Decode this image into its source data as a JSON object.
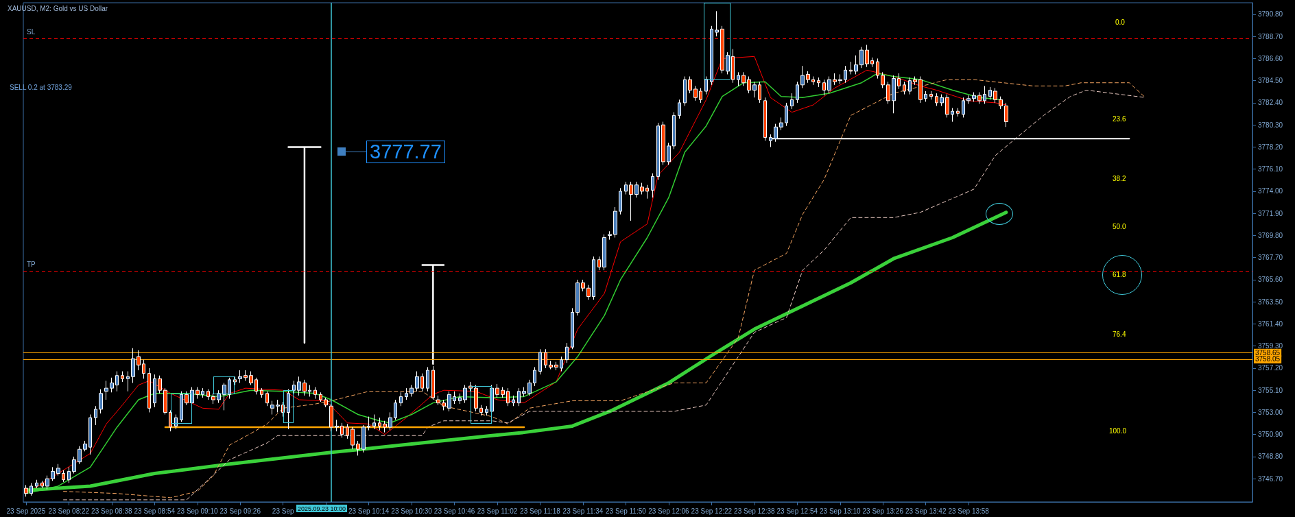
{
  "chart_data": {
    "type": "candlestick",
    "title": "XAUUSD, M2: Gold vs US Dollar",
    "x": [
      "2025-09-23T08:06",
      "2025-09-23T08:08",
      "2025-09-23T08:10",
      "2025-09-23T08:12",
      "2025-09-23T08:14",
      "2025-09-23T08:16",
      "2025-09-23T08:18",
      "2025-09-23T08:20",
      "2025-09-23T08:22",
      "2025-09-23T08:24",
      "2025-09-23T08:26",
      "2025-09-23T08:28",
      "2025-09-23T08:30",
      "2025-09-23T08:32",
      "2025-09-23T08:34",
      "2025-09-23T08:36",
      "2025-09-23T08:38",
      "2025-09-23T08:40",
      "2025-09-23T08:42",
      "2025-09-23T08:44",
      "2025-09-23T08:46",
      "2025-09-23T08:48",
      "2025-09-23T08:50",
      "2025-09-23T08:52",
      "2025-09-23T08:54",
      "2025-09-23T08:56",
      "2025-09-23T08:58",
      "2025-09-23T09:00",
      "2025-09-23T09:02",
      "2025-09-23T09:04",
      "2025-09-23T09:06",
      "2025-09-23T09:08",
      "2025-09-23T09:10",
      "2025-09-23T09:12",
      "2025-09-23T09:14",
      "2025-09-23T09:16",
      "2025-09-23T09:18",
      "2025-09-23T09:20",
      "2025-09-23T09:22",
      "2025-09-23T09:24",
      "2025-09-23T09:26",
      "2025-09-23T09:28",
      "2025-09-23T09:30",
      "2025-09-23T09:32",
      "2025-09-23T09:34",
      "2025-09-23T09:36",
      "2025-09-23T09:38",
      "2025-09-23T09:40",
      "2025-09-23T09:42",
      "2025-09-23T09:44",
      "2025-09-23T09:46",
      "2025-09-23T09:48",
      "2025-09-23T09:50",
      "2025-09-23T09:52",
      "2025-09-23T09:54",
      "2025-09-23T09:56",
      "2025-09-23T09:58",
      "2025-09-23T10:00",
      "2025-09-23T10:02",
      "2025-09-23T10:04",
      "2025-09-23T10:06",
      "2025-09-23T10:08",
      "2025-09-23T10:10",
      "2025-09-23T10:12",
      "2025-09-23T10:14",
      "2025-09-23T10:16",
      "2025-09-23T10:18",
      "2025-09-23T10:20",
      "2025-09-23T10:22",
      "2025-09-23T10:24",
      "2025-09-23T10:26",
      "2025-09-23T10:28",
      "2025-09-23T10:30",
      "2025-09-23T10:32",
      "2025-09-23T10:34",
      "2025-09-23T10:36",
      "2025-09-23T10:38",
      "2025-09-23T10:40",
      "2025-09-23T10:42",
      "2025-09-23T10:44",
      "2025-09-23T10:46",
      "2025-09-23T10:48",
      "2025-09-23T10:50",
      "2025-09-23T10:52",
      "2025-09-23T10:54",
      "2025-09-23T10:56",
      "2025-09-23T10:58",
      "2025-09-23T11:00",
      "2025-09-23T11:02",
      "2025-09-23T11:04",
      "2025-09-23T11:06",
      "2025-09-23T11:08",
      "2025-09-23T11:10",
      "2025-09-23T11:12",
      "2025-09-23T11:14",
      "2025-09-23T11:16",
      "2025-09-23T11:18",
      "2025-09-23T11:20",
      "2025-09-23T11:22",
      "2025-09-23T11:24",
      "2025-09-23T11:26",
      "2025-09-23T11:28",
      "2025-09-23T11:30",
      "2025-09-23T11:32",
      "2025-09-23T11:34",
      "2025-09-23T11:36",
      "2025-09-23T11:38",
      "2025-09-23T11:40",
      "2025-09-23T11:42",
      "2025-09-23T11:44",
      "2025-09-23T11:46",
      "2025-09-23T11:48",
      "2025-09-23T11:50",
      "2025-09-23T11:52",
      "2025-09-23T11:54",
      "2025-09-23T11:56",
      "2025-09-23T11:58",
      "2025-09-23T12:00",
      "2025-09-23T12:02",
      "2025-09-23T12:04",
      "2025-09-23T12:06",
      "2025-09-23T12:08",
      "2025-09-23T12:10",
      "2025-09-23T12:12",
      "2025-09-23T12:14",
      "2025-09-23T12:16",
      "2025-09-23T12:18",
      "2025-09-23T12:20",
      "2025-09-23T12:22",
      "2025-09-23T12:24",
      "2025-09-23T12:26",
      "2025-09-23T12:28",
      "2025-09-23T12:30",
      "2025-09-23T12:32",
      "2025-09-23T12:34",
      "2025-09-23T12:36",
      "2025-09-23T12:38",
      "2025-09-23T12:40",
      "2025-09-23T12:42",
      "2025-09-23T12:44",
      "2025-09-23T12:46",
      "2025-09-23T12:48",
      "2025-09-23T12:50",
      "2025-09-23T12:52",
      "2025-09-23T12:54",
      "2025-09-23T12:56",
      "2025-09-23T12:58",
      "2025-09-23T13:00",
      "2025-09-23T13:02",
      "2025-09-23T13:04",
      "2025-09-23T13:06",
      "2025-09-23T13:08",
      "2025-09-23T13:10",
      "2025-09-23T13:12",
      "2025-09-23T13:14",
      "2025-09-23T13:16",
      "2025-09-23T13:18",
      "2025-09-23T13:20",
      "2025-09-23T13:22",
      "2025-09-23T13:24",
      "2025-09-23T13:26",
      "2025-09-23T13:28",
      "2025-09-23T13:30",
      "2025-09-23T13:32",
      "2025-09-23T13:34",
      "2025-09-23T13:36",
      "2025-09-23T13:38",
      "2025-09-23T13:40",
      "2025-09-23T13:42",
      "2025-09-23T13:44",
      "2025-09-23T13:46",
      "2025-09-23T13:48",
      "2025-09-23T13:50",
      "2025-09-23T13:52",
      "2025-09-23T13:54",
      "2025-09-23T13:56",
      "2025-09-23T13:58",
      "2025-09-23T14:00",
      "2025-09-23T14:02",
      "2025-09-23T14:04",
      "2025-09-23T14:06",
      "2025-09-23T14:08",
      "2025-09-23T14:10",
      "2025-09-23T14:12"
    ],
    "ohlc": [
      [
        3745.8,
        3746.1,
        3745.0,
        3745.3
      ],
      [
        3745.3,
        3746.3,
        3745.1,
        3746.0
      ],
      [
        3746.0,
        3746.6,
        3745.8,
        3746.3
      ],
      [
        3746.3,
        3746.5,
        3745.8,
        3746.0
      ],
      [
        3746.0,
        3747.0,
        3745.7,
        3746.7
      ],
      [
        3746.7,
        3747.8,
        3746.5,
        3747.4
      ],
      [
        3747.2,
        3748.1,
        3747.0,
        3747.7
      ],
      [
        3747.2,
        3747.5,
        3746.4,
        3746.6
      ],
      [
        3746.6,
        3747.8,
        3746.3,
        3747.4
      ],
      [
        3747.4,
        3748.8,
        3747.2,
        3748.5
      ],
      [
        3748.3,
        3749.8,
        3748.1,
        3749.5
      ],
      [
        3749.5,
        3750.3,
        3749.3,
        3750.0
      ],
      [
        3749.7,
        3752.8,
        3749.0,
        3752.5
      ],
      [
        3752.5,
        3753.6,
        3751.8,
        3753.3
      ],
      [
        3753.3,
        3755.2,
        3752.9,
        3754.8
      ],
      [
        3755.0,
        3756.0,
        3754.2,
        3755.3
      ],
      [
        3755.3,
        3756.3,
        3754.9,
        3755.8
      ],
      [
        3755.6,
        3756.9,
        3755.0,
        3756.5
      ],
      [
        3756.5,
        3756.9,
        3755.9,
        3756.2
      ],
      [
        3756.2,
        3756.9,
        3755.0,
        3756.4
      ],
      [
        3756.4,
        3759.1,
        3755.8,
        3758.1
      ],
      [
        3758.3,
        3758.9,
        3757.0,
        3757.5
      ],
      [
        3757.6,
        3758.0,
        3756.2,
        3756.7
      ],
      [
        3756.7,
        3757.2,
        3753.0,
        3753.4
      ],
      [
        3753.9,
        3756.6,
        3753.5,
        3756.2
      ],
      [
        3756.2,
        3756.5,
        3754.8,
        3755.1
      ],
      [
        3755.1,
        3755.3,
        3752.8,
        3753.0
      ],
      [
        3753.0,
        3753.2,
        3751.2,
        3751.6
      ],
      [
        3751.7,
        3752.8,
        3751.4,
        3752.5
      ],
      [
        3752.3,
        3755.0,
        3752.1,
        3754.7
      ],
      [
        3754.7,
        3755.0,
        3753.7,
        3753.9
      ],
      [
        3753.9,
        3755.4,
        3753.7,
        3755.1
      ],
      [
        3755.1,
        3755.4,
        3754.3,
        3754.7
      ],
      [
        3754.7,
        3755.3,
        3754.4,
        3755.0
      ],
      [
        3755.0,
        3755.2,
        3754.2,
        3754.5
      ],
      [
        3754.5,
        3754.8,
        3753.8,
        3754.2
      ],
      [
        3754.2,
        3755.1,
        3753.9,
        3754.8
      ],
      [
        3754.7,
        3755.8,
        3753.2,
        3755.6
      ],
      [
        3754.7,
        3756.3,
        3754.3,
        3756.1
      ],
      [
        3756.1,
        3756.4,
        3755.6,
        3755.9
      ],
      [
        3756.2,
        3757.0,
        3755.8,
        3756.4
      ],
      [
        3756.5,
        3757.0,
        3756.0,
        3756.3
      ],
      [
        3756.5,
        3756.9,
        3755.6,
        3755.8
      ],
      [
        3756.1,
        3756.3,
        3754.7,
        3755.0
      ],
      [
        3755.1,
        3755.3,
        3754.4,
        3754.7
      ],
      [
        3754.8,
        3755.0,
        3753.6,
        3753.9
      ],
      [
        3753.4,
        3754.1,
        3752.8,
        3753.7
      ],
      [
        3753.6,
        3754.2,
        3753.0,
        3753.7
      ],
      [
        3753.7,
        3754.0,
        3752.6,
        3753.0
      ],
      [
        3753.0,
        3755.2,
        3751.4,
        3754.8
      ],
      [
        3755.1,
        3756.0,
        3754.8,
        3755.6
      ],
      [
        3755.1,
        3756.4,
        3754.6,
        3755.9
      ],
      [
        3755.8,
        3756.1,
        3754.6,
        3755.0
      ],
      [
        3755.0,
        3755.6,
        3754.5,
        3755.1
      ],
      [
        3755.1,
        3755.4,
        3754.3,
        3754.7
      ],
      [
        3754.7,
        3754.9,
        3754.0,
        3754.2
      ],
      [
        3754.2,
        3754.4,
        3753.5,
        3753.7
      ],
      [
        3753.6,
        3753.8,
        3751.2,
        3751.6
      ],
      [
        3751.6,
        3752.3,
        3751.2,
        3751.7
      ],
      [
        3751.7,
        3752.0,
        3750.6,
        3750.9
      ],
      [
        3751.6,
        3751.9,
        3750.5,
        3750.8
      ],
      [
        3751.4,
        3751.6,
        3749.5,
        3749.9
      ],
      [
        3750.0,
        3750.3,
        3748.9,
        3749.5
      ],
      [
        3749.5,
        3751.8,
        3749.2,
        3751.6
      ],
      [
        3751.6,
        3752.6,
        3751.3,
        3751.7
      ],
      [
        3751.7,
        3752.8,
        3751.4,
        3752.0
      ],
      [
        3752.0,
        3752.5,
        3751.3,
        3751.7
      ],
      [
        3751.9,
        3752.2,
        3751.1,
        3751.6
      ],
      [
        3751.6,
        3753.0,
        3751.3,
        3752.5
      ],
      [
        3752.5,
        3754.2,
        3752.3,
        3753.9
      ],
      [
        3753.9,
        3754.9,
        3753.6,
        3754.5
      ],
      [
        3754.5,
        3755.3,
        3754.2,
        3754.8
      ],
      [
        3754.8,
        3755.6,
        3754.5,
        3755.3
      ],
      [
        3755.3,
        3756.9,
        3755.0,
        3756.4
      ],
      [
        3756.4,
        3756.7,
        3755.0,
        3755.3
      ],
      [
        3755.3,
        3757.3,
        3755.0,
        3757.0
      ],
      [
        3757.0,
        3757.4,
        3754.2,
        3754.4
      ],
      [
        3754.2,
        3754.6,
        3753.7,
        3753.9
      ],
      [
        3753.9,
        3754.2,
        3753.2,
        3753.6
      ],
      [
        3753.4,
        3755.0,
        3753.1,
        3754.7
      ],
      [
        3754.1,
        3755.0,
        3753.8,
        3754.5
      ],
      [
        3754.1,
        3754.8,
        3753.8,
        3754.4
      ],
      [
        3754.2,
        3755.6,
        3753.9,
        3755.3
      ],
      [
        3755.5,
        3755.9,
        3755.0,
        3755.3
      ],
      [
        3755.3,
        3755.6,
        3753.1,
        3753.4
      ],
      [
        3753.4,
        3753.7,
        3752.7,
        3753.0
      ],
      [
        3753.0,
        3753.6,
        3752.7,
        3753.3
      ],
      [
        3753.1,
        3755.6,
        3752.9,
        3755.3
      ],
      [
        3755.3,
        3755.7,
        3754.4,
        3754.7
      ],
      [
        3755.1,
        3755.4,
        3754.4,
        3754.7
      ],
      [
        3755.0,
        3755.3,
        3753.6,
        3753.9
      ],
      [
        3753.9,
        3754.6,
        3753.6,
        3754.2
      ],
      [
        3753.9,
        3755.3,
        3753.6,
        3755.0
      ],
      [
        3754.8,
        3755.4,
        3754.5,
        3755.0
      ],
      [
        3754.8,
        3756.1,
        3754.6,
        3755.8
      ],
      [
        3755.8,
        3757.3,
        3755.5,
        3757.0
      ],
      [
        3756.9,
        3759.0,
        3756.6,
        3758.7
      ],
      [
        3758.7,
        3759.0,
        3757.2,
        3757.5
      ],
      [
        3757.5,
        3757.9,
        3757.1,
        3757.3
      ],
      [
        3757.5,
        3757.8,
        3757.0,
        3757.3
      ],
      [
        3757.2,
        3758.3,
        3756.9,
        3758.0
      ],
      [
        3758.0,
        3759.6,
        3757.7,
        3759.2
      ],
      [
        3759.2,
        3762.9,
        3759.0,
        3762.5
      ],
      [
        3762.5,
        3765.6,
        3762.2,
        3765.3
      ],
      [
        3765.3,
        3765.6,
        3764.5,
        3764.8
      ],
      [
        3764.8,
        3765.1,
        3763.7,
        3764.0
      ],
      [
        3764.0,
        3767.8,
        3763.7,
        3767.5
      ],
      [
        3767.5,
        3767.8,
        3766.5,
        3766.8
      ],
      [
        3766.8,
        3769.9,
        3766.5,
        3769.6
      ],
      [
        3769.8,
        3770.2,
        3769.4,
        3769.9
      ],
      [
        3769.9,
        3772.5,
        3769.6,
        3772.1
      ],
      [
        3772.1,
        3774.3,
        3771.8,
        3774.0
      ],
      [
        3774.0,
        3774.9,
        3773.7,
        3774.6
      ],
      [
        3774.6,
        3774.9,
        3771.2,
        3773.7
      ],
      [
        3773.7,
        3774.9,
        3773.4,
        3774.6
      ],
      [
        3774.4,
        3774.8,
        3773.7,
        3774.0
      ],
      [
        3774.3,
        3774.6,
        3773.3,
        3774.0
      ],
      [
        3774.1,
        3775.7,
        3773.4,
        3775.4
      ],
      [
        3775.4,
        3780.5,
        3775.1,
        3780.2
      ],
      [
        3780.3,
        3780.6,
        3776.5,
        3776.8
      ],
      [
        3776.8,
        3778.6,
        3776.5,
        3778.3
      ],
      [
        3778.3,
        3781.5,
        3778.0,
        3781.2
      ],
      [
        3781.2,
        3782.7,
        3780.9,
        3782.4
      ],
      [
        3782.4,
        3784.9,
        3782.1,
        3784.6
      ],
      [
        3784.6,
        3784.9,
        3783.3,
        3783.6
      ],
      [
        3783.7,
        3784.0,
        3782.6,
        3782.9
      ],
      [
        3783.5,
        3783.8,
        3782.4,
        3782.7
      ],
      [
        3783.5,
        3784.9,
        3783.2,
        3784.6
      ],
      [
        3784.4,
        3789.7,
        3784.1,
        3789.4
      ],
      [
        3789.1,
        3791.1,
        3788.7,
        3789.3
      ],
      [
        3789.4,
        3789.7,
        3785.2,
        3785.5
      ],
      [
        3785.4,
        3787.2,
        3785.1,
        3786.9
      ],
      [
        3786.8,
        3787.5,
        3784.3,
        3784.6
      ],
      [
        3784.6,
        3785.3,
        3784.0,
        3785.0
      ],
      [
        3785.0,
        3785.3,
        3784.0,
        3784.3
      ],
      [
        3784.6,
        3784.9,
        3783.3,
        3783.6
      ],
      [
        3783.6,
        3784.4,
        3782.9,
        3784.1
      ],
      [
        3784.1,
        3784.4,
        3782.4,
        3782.7
      ],
      [
        3782.6,
        3782.9,
        3778.8,
        3779.1
      ],
      [
        3778.8,
        3779.4,
        3778.2,
        3779.1
      ],
      [
        3779.0,
        3780.4,
        3778.7,
        3780.1
      ],
      [
        3780.1,
        3781.0,
        3779.8,
        3780.5
      ],
      [
        3780.5,
        3782.4,
        3780.2,
        3782.1
      ],
      [
        3782.1,
        3783.3,
        3781.8,
        3782.7
      ],
      [
        3782.7,
        3784.4,
        3782.4,
        3784.1
      ],
      [
        3784.1,
        3785.9,
        3783.8,
        3785.0
      ],
      [
        3785.1,
        3785.4,
        3784.3,
        3784.6
      ],
      [
        3784.6,
        3784.9,
        3784.1,
        3784.4
      ],
      [
        3784.5,
        3784.8,
        3783.9,
        3784.3
      ],
      [
        3784.3,
        3784.6,
        3783.1,
        3783.6
      ],
      [
        3783.6,
        3784.9,
        3783.3,
        3784.6
      ],
      [
        3784.6,
        3785.2,
        3784.1,
        3784.4
      ],
      [
        3784.5,
        3785.1,
        3784.2,
        3784.6
      ],
      [
        3784.6,
        3785.9,
        3784.3,
        3785.5
      ],
      [
        3785.5,
        3786.3,
        3785.1,
        3785.4
      ],
      [
        3785.4,
        3786.9,
        3785.1,
        3786.0
      ],
      [
        3786.0,
        3787.7,
        3785.7,
        3787.4
      ],
      [
        3787.4,
        3787.9,
        3785.8,
        3786.1
      ],
      [
        3786.4,
        3786.7,
        3785.8,
        3786.1
      ],
      [
        3786.3,
        3786.6,
        3784.7,
        3785.0
      ],
      [
        3785.0,
        3785.3,
        3783.8,
        3784.1
      ],
      [
        3784.1,
        3784.4,
        3782.3,
        3782.6
      ],
      [
        3782.6,
        3785.0,
        3781.4,
        3784.7
      ],
      [
        3784.7,
        3785.2,
        3783.7,
        3784.0
      ],
      [
        3784.1,
        3784.4,
        3783.2,
        3783.5
      ],
      [
        3783.5,
        3784.8,
        3783.2,
        3784.5
      ],
      [
        3784.6,
        3784.9,
        3784.1,
        3784.4
      ],
      [
        3784.6,
        3784.9,
        3782.4,
        3782.7
      ],
      [
        3782.8,
        3783.5,
        3782.5,
        3783.2
      ],
      [
        3783.2,
        3783.5,
        3782.7,
        3783.0
      ],
      [
        3783.0,
        3783.3,
        3782.1,
        3782.4
      ],
      [
        3782.4,
        3783.2,
        3782.1,
        3782.9
      ],
      [
        3782.9,
        3783.2,
        3781.0,
        3781.3
      ],
      [
        3781.3,
        3781.9,
        3780.6,
        3781.6
      ],
      [
        3781.6,
        3781.9,
        3781.1,
        3781.4
      ],
      [
        3781.3,
        3782.9,
        3781.0,
        3782.6
      ],
      [
        3782.6,
        3783.1,
        3782.3,
        3782.8
      ],
      [
        3782.8,
        3783.4,
        3782.5,
        3783.1
      ],
      [
        3783.1,
        3783.4,
        3782.3,
        3782.6
      ],
      [
        3782.6,
        3784.0,
        3782.3,
        3783.2
      ],
      [
        3783.0,
        3783.9,
        3782.7,
        3783.6
      ],
      [
        3783.5,
        3783.8,
        3782.4,
        3782.7
      ],
      [
        3782.7,
        3783.0,
        3781.8,
        3782.1
      ],
      [
        3782.1,
        3782.4,
        3780.1,
        3780.6
      ]
    ],
    "colors": [
      "#ff4500",
      "#4a7ebb",
      "#4a7ebb",
      "#ff4500",
      "#4a7ebb",
      "#4a7ebb",
      "#4a7ebb",
      "#ff4500",
      "#4a7ebb",
      "#4a7ebb",
      "#4a7ebb",
      "#4a7ebb",
      "#4a7ebb",
      "#4a7ebb",
      "#4a7ebb",
      "#4a7ebb",
      "#4a7ebb",
      "#4a7ebb",
      "#ff4500",
      "#4a7ebb",
      "#4a7ebb",
      "#ff4500",
      "#ff4500",
      "#ff4500",
      "#4a7ebb",
      "#ff4500",
      "#ff4500",
      "#ff4500",
      "#4a7ebb",
      "#4a7ebb",
      "#ff4500",
      "#4a7ebb",
      "#ff4500",
      "#4a7ebb",
      "#ff4500",
      "#ff4500",
      "#4a7ebb",
      "#4a7ebb",
      "#4a7ebb",
      "#ff4500",
      "#4a7ebb",
      "#ff4500",
      "#ff4500",
      "#ff4500",
      "#ff4500",
      "#ff4500",
      "#4a7ebb",
      "#4a7ebb",
      "#ff4500",
      "#4a7ebb",
      "#4a7ebb",
      "#4a7ebb",
      "#ff4500",
      "#4a7ebb",
      "#ff4500",
      "#ff4500",
      "#ff4500",
      "#ff4500",
      "#4a7ebb",
      "#ff4500",
      "#ff4500",
      "#ff4500",
      "#ff4500",
      "#4a7ebb",
      "#4a7ebb",
      "#4a7ebb",
      "#ff4500",
      "#ff4500",
      "#4a7ebb",
      "#4a7ebb",
      "#4a7ebb",
      "#4a7ebb",
      "#4a7ebb",
      "#4a7ebb",
      "#ff4500",
      "#4a7ebb",
      "#ff4500",
      "#ff4500",
      "#ff4500",
      "#4a7ebb",
      "#4a7ebb",
      "#4a7ebb",
      "#4a7ebb",
      "#ff4500",
      "#ff4500",
      "#ff4500",
      "#4a7ebb",
      "#4a7ebb",
      "#ff4500",
      "#ff4500",
      "#ff4500",
      "#4a7ebb",
      "#4a7ebb",
      "#4a7ebb",
      "#4a7ebb",
      "#4a7ebb",
      "#4a7ebb",
      "#ff4500",
      "#ff4500",
      "#ff4500",
      "#4a7ebb",
      "#4a7ebb",
      "#4a7ebb",
      "#4a7ebb",
      "#ff4500",
      "#ff4500",
      "#4a7ebb",
      "#ff4500",
      "#4a7ebb",
      "#4a7ebb",
      "#4a7ebb",
      "#4a7ebb",
      "#4a7ebb",
      "#ff4500",
      "#4a7ebb",
      "#ff4500",
      "#ff4500",
      "#4a7ebb",
      "#4a7ebb",
      "#ff4500",
      "#4a7ebb",
      "#4a7ebb",
      "#4a7ebb",
      "#4a7ebb",
      "#ff4500",
      "#ff4500",
      "#ff4500",
      "#4a7ebb",
      "#4a7ebb",
      "#4a7ebb",
      "#ff4500",
      "#4a7ebb",
      "#ff4500",
      "#4a7ebb",
      "#ff4500",
      "#ff4500",
      "#4a7ebb",
      "#ff4500",
      "#ff4500",
      "#4a7ebb",
      "#4a7ebb",
      "#4a7ebb",
      "#4a7ebb",
      "#4a7ebb",
      "#4a7ebb",
      "#4a7ebb",
      "#ff4500",
      "#ff4500",
      "#ff4500",
      "#ff4500",
      "#4a7ebb",
      "#ff4500",
      "#4a7ebb",
      "#4a7ebb",
      "#ff4500",
      "#4a7ebb",
      "#4a7ebb",
      "#ff4500",
      "#ff4500",
      "#ff4500",
      "#ff4500",
      "#ff4500",
      "#4a7ebb",
      "#ff4500",
      "#ff4500",
      "#4a7ebb",
      "#ff4500",
      "#ff4500",
      "#4a7ebb",
      "#ff4500",
      "#ff4500",
      "#4a7ebb",
      "#ff4500",
      "#4a7ebb",
      "#ff4500",
      "#4a7ebb",
      "#4a7ebb",
      "#4a7ebb",
      "#ff4500",
      "#4a7ebb",
      "#4a7ebb",
      "#ff4500",
      "#ff4500",
      "#ff4500"
    ],
    "series": [
      {
        "type": "line",
        "color": "#ff0000",
        "x": [
          "2025-09-23T08:06",
          "2025-09-23T08:30",
          "2025-09-23T08:36",
          "2025-09-23T08:42",
          "2025-09-23T08:48",
          "2025-09-23T08:52",
          "2025-09-23T09:00",
          "2025-09-23T09:12",
          "2025-09-23T09:18",
          "2025-09-23T09:22",
          "2025-09-23T09:28",
          "2025-09-23T09:42",
          "2025-09-23T09:48",
          "2025-09-23T09:58",
          "2025-09-23T10:06",
          "2025-09-23T10:14",
          "2025-09-23T10:20",
          "2025-09-23T10:28",
          "2025-09-23T10:38",
          "2025-09-23T10:42",
          "2025-09-23T10:54",
          "2025-09-23T11:02",
          "2025-09-23T11:12",
          "2025-09-23T11:24",
          "2025-09-23T11:32",
          "2025-09-23T11:42",
          "2025-09-23T11:48",
          "2025-09-23T11:58",
          "2025-09-23T12:02",
          "2025-09-23T12:10",
          "2025-09-23T12:20",
          "2025-09-23T12:26",
          "2025-09-23T12:38",
          "2025-09-23T12:44",
          "2025-09-23T12:52",
          "2025-09-23T13:00",
          "2025-09-23T13:08",
          "2025-09-23T13:20",
          "2025-09-23T13:30",
          "2025-09-23T13:40",
          "2025-09-23T13:46",
          "2025-09-23T13:58",
          "2025-09-23T14:08",
          "2025-09-23T14:12"
        ],
        "values": [
          3745.3,
          3749.1,
          3751.9,
          3753.7,
          3755.6,
          3756.0,
          3754.8,
          3753.4,
          3753.3,
          3754.8,
          3755.3,
          3755.1,
          3754.2,
          3754.1,
          3752.0,
          3751.9,
          3750.9,
          3752.5,
          3754.7,
          3755.1,
          3755.0,
          3754.2,
          3753.9,
          3755.9,
          3760.9,
          3764.3,
          3769.2,
          3770.9,
          3775.5,
          3777.7,
          3782.7,
          3786.6,
          3786.8,
          3782.9,
          3781.5,
          3782.2,
          3783.8,
          3785.5,
          3784.9,
          3784.0,
          3783.6,
          3782.6,
          3782.4,
          3782.2
        ]
      },
      {
        "type": "line",
        "color": "#32cd32",
        "x": [
          "2025-09-23T08:06",
          "2025-09-23T08:18",
          "2025-09-23T08:30",
          "2025-09-23T08:40",
          "2025-09-23T08:48",
          "2025-09-23T08:54",
          "2025-09-23T09:06",
          "2025-09-23T09:18",
          "2025-09-23T09:30",
          "2025-09-23T09:42",
          "2025-09-23T09:54",
          "2025-09-23T10:00",
          "2025-09-23T10:10",
          "2025-09-23T10:18",
          "2025-09-23T10:22",
          "2025-09-23T10:30",
          "2025-09-23T10:38",
          "2025-09-23T10:48",
          "2025-09-23T11:00",
          "2025-09-23T11:12",
          "2025-09-23T11:24",
          "2025-09-23T11:32",
          "2025-09-23T11:42",
          "2025-09-23T11:48",
          "2025-09-23T11:58",
          "2025-09-23T12:06",
          "2025-09-23T12:12",
          "2025-09-23T12:20",
          "2025-09-23T12:26",
          "2025-09-23T12:34",
          "2025-09-23T12:42",
          "2025-09-23T12:48",
          "2025-09-23T12:56",
          "2025-09-23T13:06",
          "2025-09-23T13:18",
          "2025-09-23T13:24",
          "2025-09-23T13:30",
          "2025-09-23T13:40",
          "2025-09-23T13:52",
          "2025-09-23T14:02",
          "2025-09-23T14:10"
        ],
        "values": [
          3745.3,
          3746.0,
          3747.8,
          3751.6,
          3754.2,
          3754.8,
          3754.8,
          3754.5,
          3755.1,
          3755.0,
          3754.8,
          3754.2,
          3752.8,
          3752.2,
          3752.0,
          3752.8,
          3753.9,
          3754.5,
          3754.4,
          3754.5,
          3755.9,
          3758.3,
          3762.2,
          3765.6,
          3769.6,
          3773.4,
          3777.7,
          3780.2,
          3783.0,
          3784.3,
          3784.4,
          3783.0,
          3782.9,
          3783.3,
          3784.3,
          3785.2,
          3784.9,
          3784.6,
          3783.6,
          3782.9,
          3782.7
        ]
      },
      {
        "type": "line",
        "color": "#3ad13a",
        "x": [
          "2025-09-23T08:06",
          "2025-09-23T08:30",
          "2025-09-23T08:54",
          "2025-09-23T09:22",
          "2025-09-23T10:00",
          "2025-09-23T10:30",
          "2025-09-23T11:00",
          "2025-09-23T11:12",
          "2025-09-23T11:30",
          "2025-09-23T11:44",
          "2025-09-23T12:06",
          "2025-09-23T12:22",
          "2025-09-23T12:38",
          "2025-09-23T12:56",
          "2025-09-23T13:14",
          "2025-09-23T13:30",
          "2025-09-23T13:52",
          "2025-09-23T14:12"
        ],
        "values": [
          3745.6,
          3746.0,
          3747.2,
          3748.1,
          3749.2,
          3750.0,
          3750.8,
          3751.1,
          3751.7,
          3753.1,
          3755.8,
          3758.4,
          3760.9,
          3763.1,
          3765.3,
          3767.6,
          3769.6,
          3772.0
        ]
      },
      {
        "type": "line",
        "color": "#f4a460",
        "line_style": "dashed",
        "x": [
          "2025-09-23T08:20",
          "2025-09-23T08:40",
          "2025-09-23T09:00",
          "2025-09-23T09:10",
          "2025-09-23T09:16",
          "2025-09-23T09:22",
          "2025-09-23T09:30",
          "2025-09-23T09:36",
          "2025-09-23T09:42",
          "2025-09-23T09:54",
          "2025-09-23T10:00",
          "2025-09-23T10:14",
          "2025-09-23T10:34",
          "2025-09-23T10:42",
          "2025-09-23T11:00",
          "2025-09-23T11:06",
          "2025-09-23T11:14",
          "2025-09-23T11:30",
          "2025-09-23T11:48",
          "2025-09-23T12:08",
          "2025-09-23T12:20",
          "2025-09-23T12:32",
          "2025-09-23T12:38",
          "2025-09-23T12:50",
          "2025-09-23T12:56",
          "2025-09-23T13:04",
          "2025-09-23T13:14",
          "2025-09-23T13:30",
          "2025-09-23T13:50",
          "2025-09-23T14:00",
          "2025-09-23T14:22",
          "2025-09-23T14:34",
          "2025-09-23T14:40",
          "2025-09-23T14:58",
          "2025-09-23T15:04"
        ],
        "values": [
          3745.5,
          3745.3,
          3744.9,
          3745.5,
          3747.0,
          3749.9,
          3751.0,
          3751.9,
          3753.4,
          3753.8,
          3754.1,
          3755.0,
          3755.0,
          3753.6,
          3752.6,
          3751.9,
          3753.4,
          3754.1,
          3754.1,
          3755.8,
          3755.8,
          3760.1,
          3766.5,
          3768.1,
          3771.8,
          3775.1,
          3781.2,
          3783.3,
          3784.6,
          3784.6,
          3784.0,
          3784.0,
          3784.3,
          3784.3,
          3782.9
        ]
      },
      {
        "type": "line",
        "color": "#e8c8c0",
        "line_style": "dashed",
        "x": [
          "2025-09-23T08:20",
          "2025-09-23T09:06",
          "2025-09-23T09:22",
          "2025-09-23T09:36",
          "2025-09-23T09:40",
          "2025-09-23T10:34",
          "2025-09-23T10:36",
          "2025-09-23T10:42",
          "2025-09-23T11:00",
          "2025-09-23T11:06",
          "2025-09-23T11:14",
          "2025-09-23T12:08",
          "2025-09-23T12:20",
          "2025-09-23T12:38",
          "2025-09-23T12:50",
          "2025-09-23T12:56",
          "2025-09-23T13:04",
          "2025-09-23T13:14",
          "2025-09-23T13:30",
          "2025-09-23T13:40",
          "2025-09-23T13:50",
          "2025-09-23T14:00",
          "2025-09-23T14:08",
          "2025-09-23T14:16",
          "2025-09-23T14:26",
          "2025-09-23T14:36",
          "2025-09-23T14:42",
          "2025-09-23T15:04"
        ],
        "values": [
          3744.7,
          3744.7,
          3748.5,
          3750.1,
          3750.8,
          3750.8,
          3751.6,
          3752.2,
          3752.2,
          3752.0,
          3753.1,
          3753.1,
          3753.7,
          3760.6,
          3762.0,
          3766.5,
          3768.4,
          3771.5,
          3771.5,
          3772.0,
          3773.1,
          3774.2,
          3777.4,
          3779.1,
          3781.2,
          3783.0,
          3783.6,
          3782.9
        ]
      },
      {
        "type": "line",
        "color": "#ffffff",
        "x": [
          "2025-09-23T12:44",
          "2025-09-23T14:58"
        ],
        "values": [
          3779.0,
          3779.0
        ]
      },
      {
        "type": "line",
        "color": "#ffa500",
        "x": [
          "2025-09-23T08:58",
          "2025-09-23T11:12"
        ],
        "values": [
          3751.6,
          3751.6
        ]
      },
      {
        "type": "line",
        "color": "#ffffff",
        "x": [
          "2025-09-23T09:44",
          "2025-09-23T09:56",
          "2025-09-23T09:50",
          "2025-09-23T09:50"
        ],
        "values": [
          3778.2,
          3778.2,
          3778.2,
          3759.6
        ]
      },
      {
        "type": "line",
        "color": "#ffffff",
        "x": [
          "2025-09-23T10:34",
          "2025-09-23T10:42",
          "2025-09-23T10:38",
          "2025-09-23T10:38"
        ],
        "values": [
          3767.0,
          3767.0,
          3767.0,
          3757.6
        ]
      }
    ],
    "xlim": [
      "2025-09-23T08:05",
      "2025-09-23T15:44"
    ],
    "xticks": [
      {
        "value": "2025-09-23T08:06",
        "label": "23 Sep 2025"
      },
      {
        "value": "2025-09-23T08:22",
        "label": "23 Sep 08:22"
      },
      {
        "value": "2025-09-23T08:38",
        "label": "23 Sep 08:38"
      },
      {
        "value": "2025-09-23T08:54",
        "label": "23 Sep 08:54"
      },
      {
        "value": "2025-09-23T09:10",
        "label": "23 Sep 09:10"
      },
      {
        "value": "2025-09-23T09:26",
        "label": "23 Sep 09:26"
      },
      {
        "value": "2025-09-23T09:42",
        "label": "23 Sep"
      },
      {
        "value": "2025-09-23T09:58",
        "label": null
      },
      {
        "value": "2025-09-23T10:14",
        "label": "23 Sep 10:14"
      },
      {
        "value": "2025-09-23T10:30",
        "label": "23 Sep 10:30"
      },
      {
        "value": "2025-09-23T10:46",
        "label": "23 Sep 10:46"
      },
      {
        "value": "2025-09-23T11:02",
        "label": "23 Sep 11:02"
      },
      {
        "value": "2025-09-23T11:18",
        "label": "23 Sep 11:18"
      },
      {
        "value": "2025-09-23T11:34",
        "label": "23 Sep 11:34"
      },
      {
        "value": "2025-09-23T11:50",
        "label": "23 Sep 11:50"
      },
      {
        "value": "2025-09-23T12:06",
        "label": "23 Sep 12:06"
      },
      {
        "value": "2025-09-23T12:22",
        "label": "23 Sep 12:22"
      },
      {
        "value": "2025-09-23T12:38",
        "label": "23 Sep 12:38"
      },
      {
        "value": "2025-09-23T12:54",
        "label": "23 Sep 12:54"
      },
      {
        "value": "2025-09-23T13:10",
        "label": "23 Sep 13:10"
      },
      {
        "value": "2025-09-23T13:26",
        "label": "23 Sep 13:26"
      },
      {
        "value": "2025-09-23T13:42",
        "label": "23 Sep 13:42"
      },
      {
        "value": "2025-09-23T13:58",
        "label": "23 Sep 13:58"
      }
    ],
    "ylim": [
      3744.5,
      3791.9
    ],
    "yticks": [
      {
        "value": 3746.7,
        "label": "3746.70"
      },
      {
        "value": 3748.8,
        "label": "3748.80"
      },
      {
        "value": 3750.9,
        "label": "3750.90"
      },
      {
        "value": 3753.0,
        "label": "3753.00"
      },
      {
        "value": 3755.1,
        "label": "3755.10"
      },
      {
        "value": 3757.2,
        "label": "3757.20"
      },
      {
        "value": 3759.3,
        "label": "3759.30"
      },
      {
        "value": 3761.4,
        "label": "3761.40"
      },
      {
        "value": 3763.5,
        "label": "3763.50"
      },
      {
        "value": 3765.6,
        "label": "3765.60"
      },
      {
        "value": 3767.7,
        "label": "3767.70"
      },
      {
        "value": 3769.8,
        "label": "3769.80"
      },
      {
        "value": 3771.9,
        "label": "3771.90"
      },
      {
        "value": 3774.0,
        "label": "3774.00"
      },
      {
        "value": 3776.1,
        "label": "3776.10"
      },
      {
        "value": 3778.2,
        "label": "3778.20"
      },
      {
        "value": 3780.3,
        "label": "3780.30"
      },
      {
        "value": 3782.4,
        "label": "3782.40"
      },
      {
        "value": 3784.5,
        "label": "3784.50"
      },
      {
        "value": 3786.6,
        "label": "3786.60"
      },
      {
        "value": 3788.7,
        "label": "3788.70"
      },
      {
        "value": 3790.8,
        "label": "3790.80"
      }
    ],
    "ref_lines": [
      {
        "axis": "y",
        "value": 3788.5,
        "label": "SL",
        "color": "#ff0000",
        "line_style": "dashed"
      },
      {
        "axis": "y",
        "value": 3766.4,
        "label": "TP",
        "color": "#ff0000",
        "line_style": "dashed"
      },
      {
        "axis": "y",
        "value": 3758.65,
        "label": "3758.65",
        "color": "#ffa500"
      },
      {
        "axis": "y",
        "value": 3758.05,
        "label": "3758.05",
        "color": "#ffa500"
      },
      {
        "axis": "x",
        "value": "2025-09-23T10:00",
        "label": "2025.09.23 10:00",
        "color": "#40c8d8"
      }
    ],
    "annotations": [
      "SELL 0.2 at 3783.29",
      "3777.77",
      "0.0",
      "23.6",
      "38.2",
      "50.0",
      "61.8",
      "76.4",
      "100.0"
    ]
  }
}
